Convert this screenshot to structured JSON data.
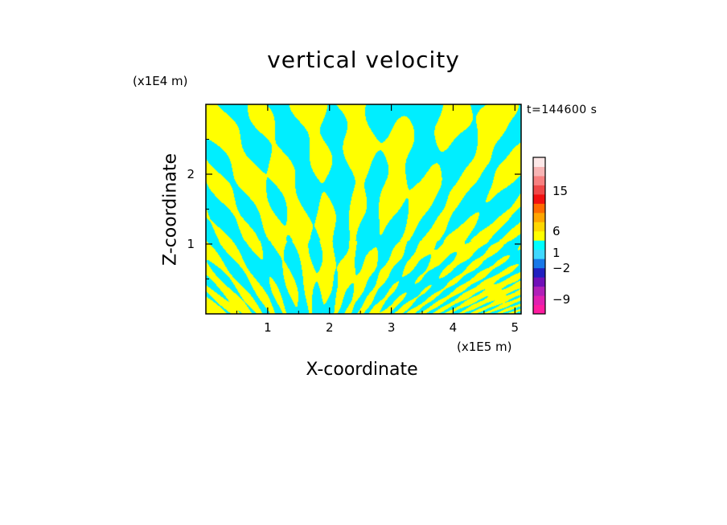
{
  "chart_data": {
    "type": "heatmap",
    "title": "vertical velocity",
    "xlabel": "X-coordinate",
    "ylabel": "Z-coordinate",
    "x_unit": "(x1E5 m)",
    "y_unit": "(x1E4 m)",
    "timestamp": "t=144600 s",
    "xlim": [
      0,
      5.1
    ],
    "ylim": [
      0,
      3.0
    ],
    "x_ticks": [
      1,
      2,
      3,
      4,
      5
    ],
    "y_ticks": [
      1,
      2
    ],
    "x_tick_labels": [
      "1",
      "2",
      "3",
      "4",
      "5"
    ],
    "y_tick_labels": [
      "1",
      "2"
    ],
    "field_colors": {
      "positive": "#ffff00",
      "negative": "#00eeff"
    },
    "colorbar": {
      "bins": [
        {
          "color": "#ff1ca0"
        },
        {
          "color": "#e020b0"
        },
        {
          "color": "#b020b8"
        },
        {
          "color": "#7010b8"
        },
        {
          "color": "#2020c0"
        },
        {
          "color": "#1878e8"
        },
        {
          "color": "#40d8ff"
        },
        {
          "color": "#00ffff"
        },
        {
          "color": "#ffff00"
        },
        {
          "color": "#ffd700"
        },
        {
          "color": "#ffa500"
        },
        {
          "color": "#ff6a00"
        },
        {
          "color": "#f21010"
        },
        {
          "color": "#f04848"
        },
        {
          "color": "#f88080"
        },
        {
          "color": "#f8b4b4"
        },
        {
          "color": "#fde8e8"
        }
      ],
      "labels": [
        {
          "text": "15",
          "value": 15
        },
        {
          "text": "6",
          "value": 6
        },
        {
          "text": "1",
          "value": 1
        },
        {
          "text": "−2",
          "value": -2
        },
        {
          "text": "−9",
          "value": -9
        }
      ]
    }
  }
}
